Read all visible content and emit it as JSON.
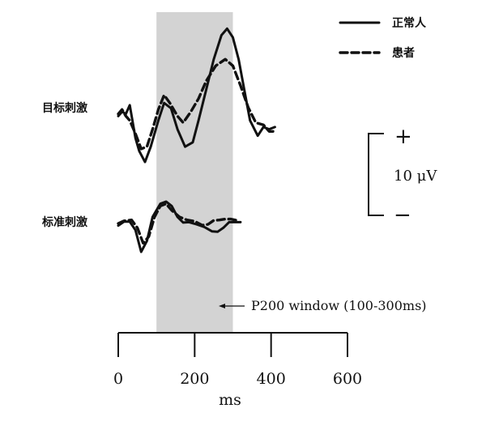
{
  "chart_data": {
    "type": "line",
    "xlabel": "ms",
    "x_ticks": [
      0,
      200,
      400,
      600
    ],
    "xlim": [
      0,
      600
    ],
    "shaded_window": {
      "from": 100,
      "to": 300,
      "color": "#d3d3d3"
    },
    "annotation": "P200 window (100-300ms)",
    "legend": {
      "position": "top-right",
      "items": [
        {
          "label": "正常人",
          "style": "solid"
        },
        {
          "label": "患者",
          "style": "dashed"
        }
      ]
    },
    "scale_bar": {
      "plus": "+",
      "minus": "−",
      "label": "10 μV"
    },
    "conditions": [
      {
        "label": "目标刺激",
        "series": [
          {
            "group": "正常人",
            "style": "solid",
            "points": [
              [
                0,
                -1
              ],
              [
                10,
                0
              ],
              [
                20,
                -0.5
              ],
              [
                30,
                1.5
              ],
              [
                45,
                -6
              ],
              [
                55,
                -9
              ],
              [
                70,
                -11.5
              ],
              [
                85,
                -8
              ],
              [
                105,
                -2
              ],
              [
                120,
                2
              ],
              [
                138,
                0.8
              ],
              [
                155,
                -4
              ],
              [
                175,
                -8
              ],
              [
                195,
                -7
              ],
              [
                210,
                -2
              ],
              [
                230,
                5
              ],
              [
                250,
                12
              ],
              [
                270,
                17.5
              ],
              [
                285,
                19
              ],
              [
                300,
                17
              ],
              [
                315,
                12
              ],
              [
                330,
                5
              ],
              [
                345,
                -2
              ],
              [
                365,
                -5.5
              ],
              [
                380,
                -3.5
              ],
              [
                395,
                -4
              ],
              [
                410,
                -3.5
              ]
            ]
          },
          {
            "group": "患者",
            "style": "dashed",
            "points": [
              [
                0,
                -0.5
              ],
              [
                10,
                0.5
              ],
              [
                20,
                -1
              ],
              [
                30,
                -2
              ],
              [
                45,
                -5
              ],
              [
                60,
                -8.5
              ],
              [
                75,
                -8
              ],
              [
                90,
                -4
              ],
              [
                105,
                0.5
              ],
              [
                120,
                3.8
              ],
              [
                135,
                2
              ],
              [
                155,
                -1
              ],
              [
                170,
                -2.5
              ],
              [
                190,
                0
              ],
              [
                210,
                3
              ],
              [
                230,
                7
              ],
              [
                255,
                10.5
              ],
              [
                280,
                12
              ],
              [
                300,
                10.5
              ],
              [
                320,
                6
              ],
              [
                340,
                1
              ],
              [
                360,
                -2.5
              ],
              [
                380,
                -3
              ],
              [
                395,
                -4.5
              ],
              [
                405,
                -4.5
              ]
            ]
          }
        ]
      },
      {
        "label": "标准刺激",
        "series": [
          {
            "group": "正常人",
            "style": "solid",
            "points": [
              [
                0,
                -0.5
              ],
              [
                15,
                0.4
              ],
              [
                30,
                0.4
              ],
              [
                45,
                -1.5
              ],
              [
                60,
                -6.5
              ],
              [
                75,
                -4
              ],
              [
                90,
                1.5
              ],
              [
                110,
                4.5
              ],
              [
                125,
                5
              ],
              [
                140,
                4
              ],
              [
                155,
                1.5
              ],
              [
                170,
                0.2
              ],
              [
                185,
                0.3
              ],
              [
                205,
                -0.2
              ],
              [
                225,
                -0.8
              ],
              [
                245,
                -1.8
              ],
              [
                260,
                -1.9
              ],
              [
                275,
                -1
              ],
              [
                290,
                0.3
              ],
              [
                305,
                0.3
              ],
              [
                320,
                0.3
              ]
            ]
          },
          {
            "group": "患者",
            "style": "dashed",
            "points": [
              [
                0,
                0
              ],
              [
                15,
                0.6
              ],
              [
                35,
                0.8
              ],
              [
                50,
                -1
              ],
              [
                65,
                -4.5
              ],
              [
                80,
                -3
              ],
              [
                95,
                1.5
              ],
              [
                110,
                4
              ],
              [
                125,
                4.5
              ],
              [
                140,
                3
              ],
              [
                160,
                1.5
              ],
              [
                180,
                0.8
              ],
              [
                200,
                0.5
              ],
              [
                220,
                -0.4
              ],
              [
                235,
                -0.2
              ],
              [
                250,
                0.7
              ],
              [
                265,
                0.8
              ],
              [
                280,
                1
              ],
              [
                295,
                1
              ],
              [
                310,
                0.7
              ]
            ]
          }
        ]
      }
    ]
  }
}
